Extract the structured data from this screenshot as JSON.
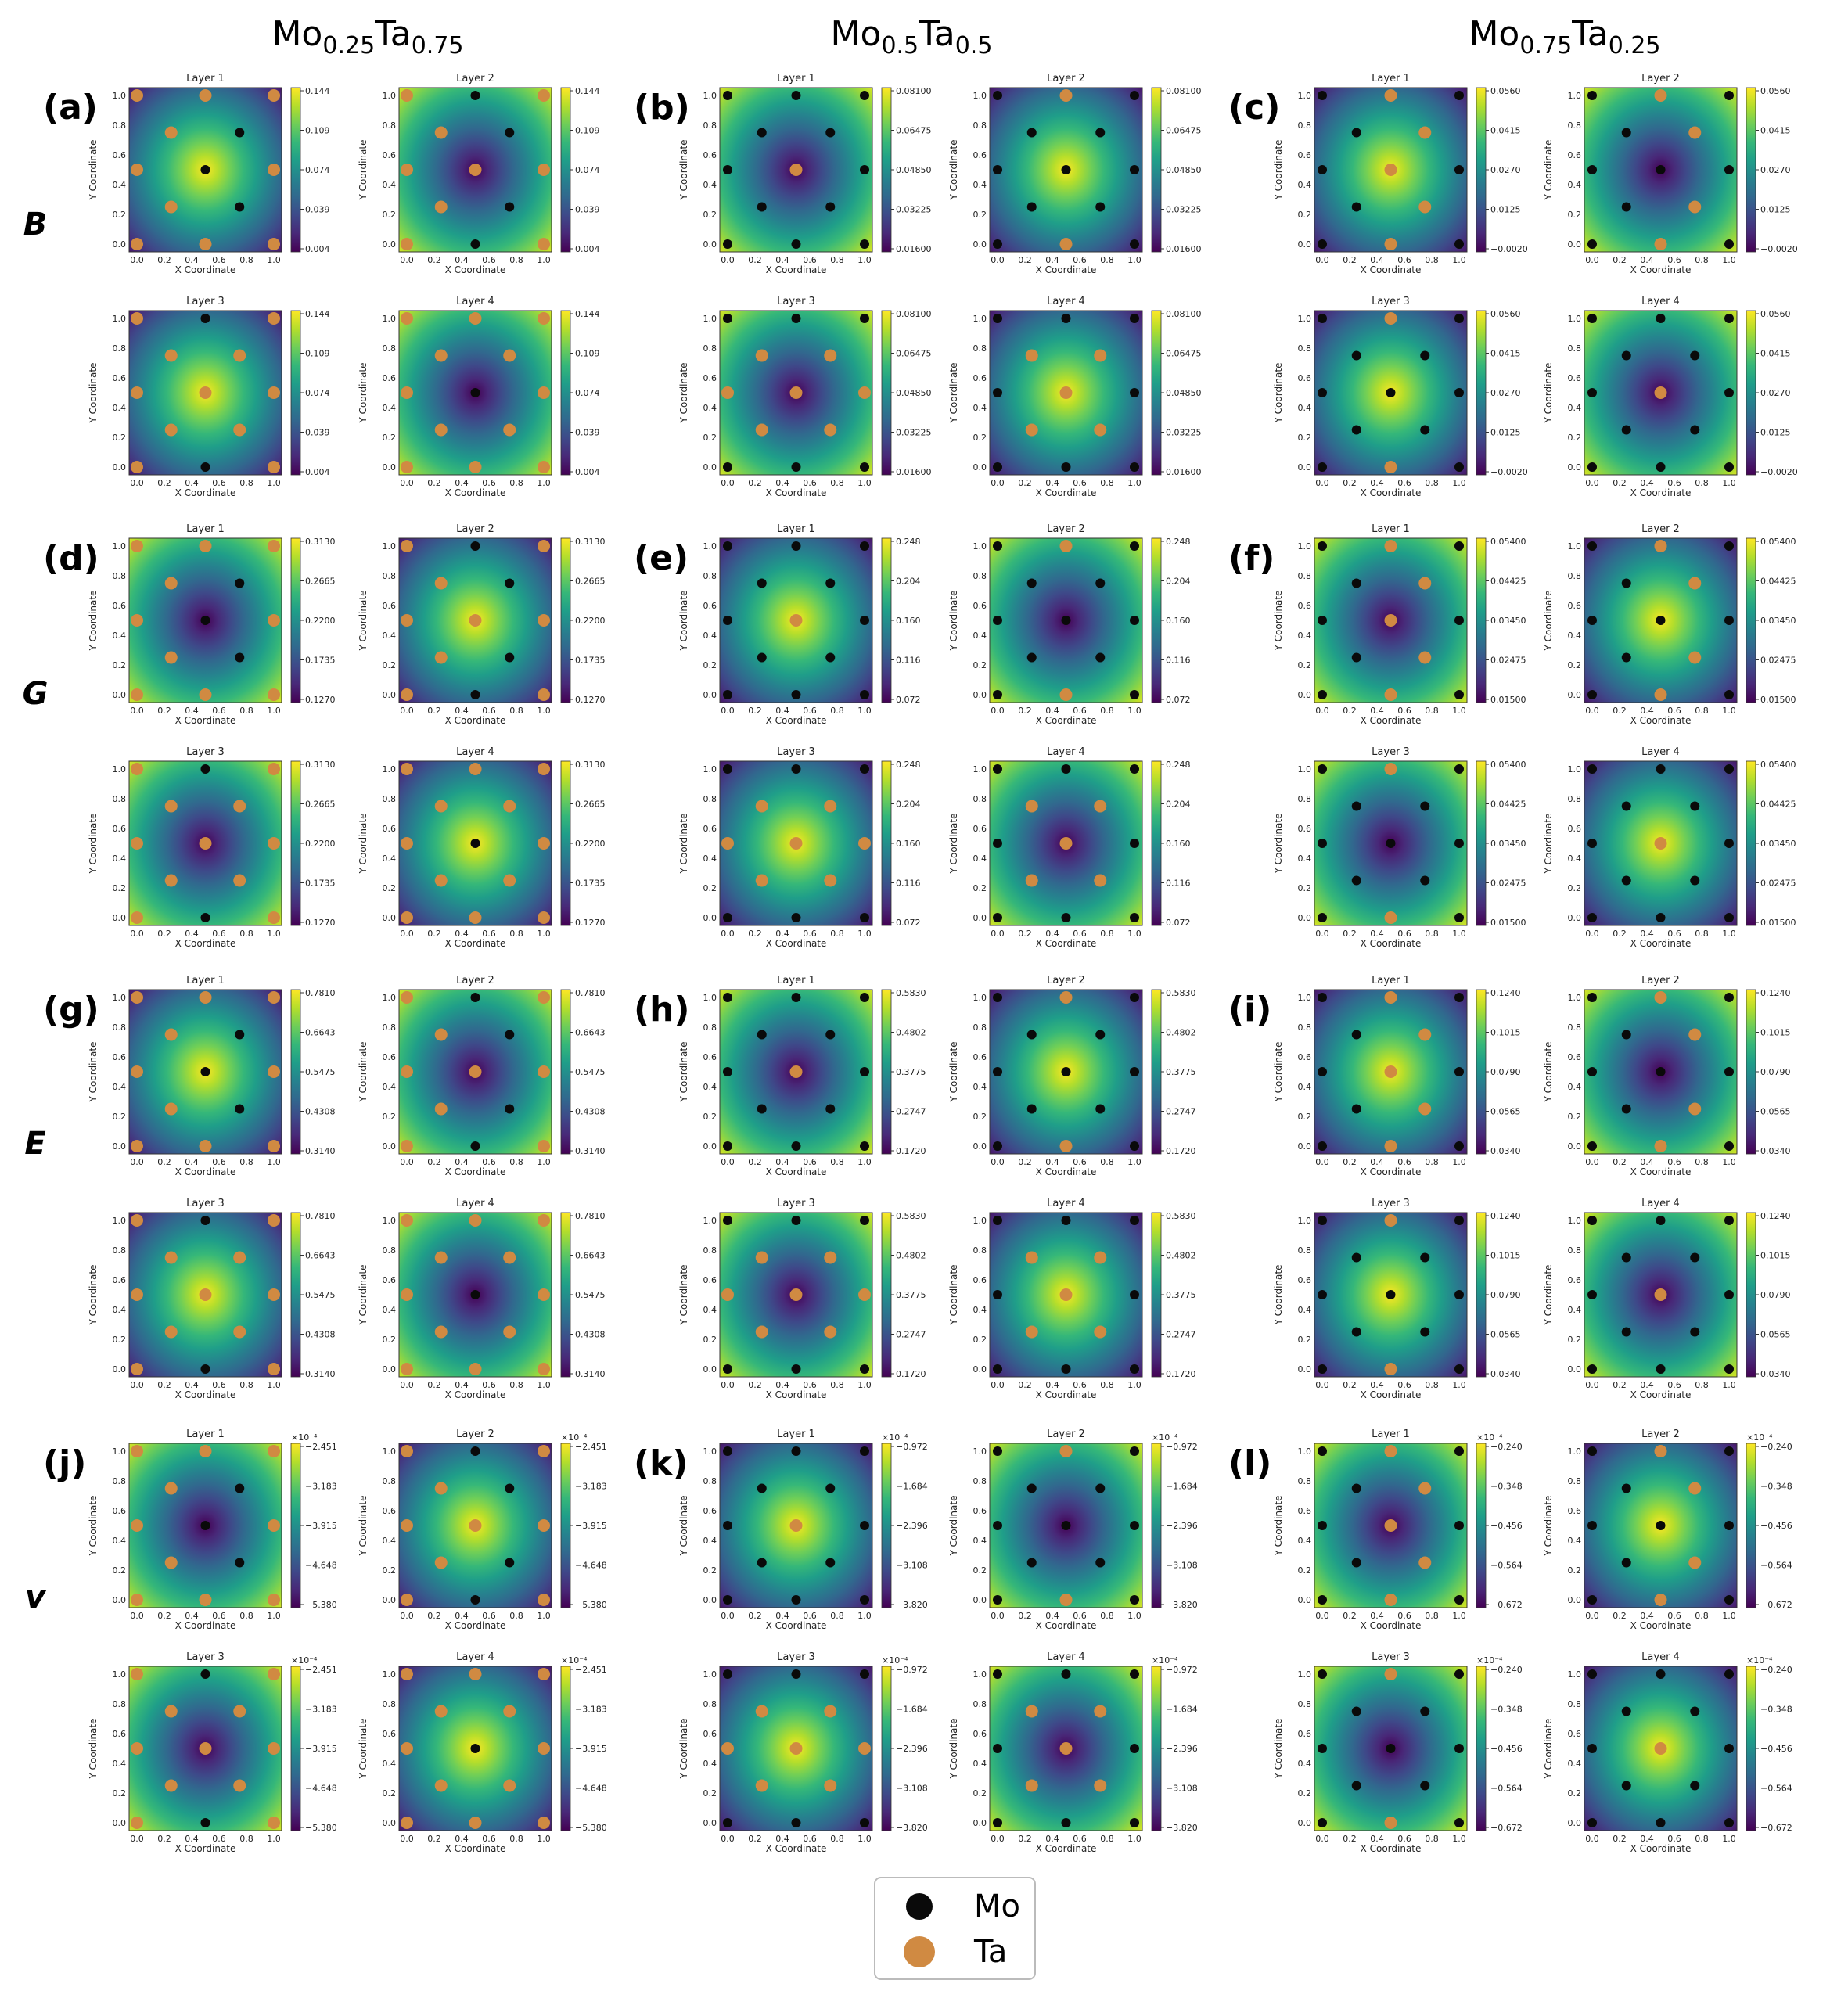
{
  "colors": {
    "mo": "#0a0a0a",
    "ta": "#d08a42",
    "viridis": [
      "#440154",
      "#482878",
      "#3e4989",
      "#31688e",
      "#26828e",
      "#1f9e89",
      "#35b779",
      "#6ece58",
      "#b5de2b",
      "#fde725"
    ]
  },
  "composition_headers": [
    {
      "base1": "Mo",
      "sub1": "0.25",
      "base2": "Ta",
      "sub2": "0.75"
    },
    {
      "base1": "Mo",
      "sub1": "0.5",
      "base2": "Ta",
      "sub2": "0.5"
    },
    {
      "base1": "Mo",
      "sub1": "0.75",
      "base2": "Ta",
      "sub2": "0.25"
    }
  ],
  "property_labels": [
    "B",
    "G",
    "E",
    "v"
  ],
  "panel_labels": [
    [
      "(a)",
      "(b)",
      "(c)"
    ],
    [
      "(d)",
      "(e)",
      "(f)"
    ],
    [
      "(g)",
      "(h)",
      "(i)"
    ],
    [
      "(j)",
      "(k)",
      "(l)"
    ]
  ],
  "axis_labels": {
    "x": "X Coordinate",
    "y": "Y Coordinate"
  },
  "axis_ticks": [
    "0.0",
    "0.2",
    "0.4",
    "0.6",
    "0.8",
    "1.0"
  ],
  "layer_titles": [
    "Layer 1",
    "Layer 2",
    "Layer 3",
    "Layer 4"
  ],
  "legend": {
    "mo": "Mo",
    "ta": "Ta"
  },
  "chart_data": {
    "type": "heatmap",
    "description_grid": "4 properties x 3 compositions, each with 4 layer contour maps",
    "colorbars": [
      [
        {
          "offset": "",
          "ticks": [
            "0.144",
            "0.109",
            "0.074",
            "0.039",
            "0.004"
          ]
        },
        {
          "offset": "",
          "ticks": [
            "0.08100",
            "0.06475",
            "0.04850",
            "0.03225",
            "0.01600"
          ]
        },
        {
          "offset": "",
          "ticks": [
            "0.0560",
            "0.0415",
            "0.0270",
            "0.0125",
            "−0.0020"
          ]
        }
      ],
      [
        {
          "offset": "",
          "ticks": [
            "0.3130",
            "0.2665",
            "0.2200",
            "0.1735",
            "0.1270"
          ]
        },
        {
          "offset": "",
          "ticks": [
            "0.248",
            "0.204",
            "0.160",
            "0.116",
            "0.072"
          ]
        },
        {
          "offset": "",
          "ticks": [
            "0.05400",
            "0.04425",
            "0.03450",
            "0.02475",
            "0.01500"
          ]
        }
      ],
      [
        {
          "offset": "",
          "ticks": [
            "0.7810",
            "0.6643",
            "0.5475",
            "0.4308",
            "0.3140"
          ]
        },
        {
          "offset": "",
          "ticks": [
            "0.5830",
            "0.4802",
            "0.3775",
            "0.2747",
            "0.1720"
          ]
        },
        {
          "offset": "",
          "ticks": [
            "0.1240",
            "0.1015",
            "0.0790",
            "0.0565",
            "0.0340"
          ]
        }
      ],
      [
        {
          "offset": "×10⁻⁴",
          "ticks": [
            "−2.451",
            "−3.183",
            "−3.915",
            "−4.648",
            "−5.380"
          ]
        },
        {
          "offset": "×10⁻⁴",
          "ticks": [
            "−0.972",
            "−1.684",
            "−2.396",
            "−3.108",
            "−3.820"
          ]
        },
        {
          "offset": "×10⁻⁴",
          "ticks": [
            "−0.240",
            "−0.348",
            "−0.456",
            "−0.564",
            "−0.672"
          ]
        }
      ]
    ],
    "atom_sites": {
      "corners": [
        [
          0,
          0
        ],
        [
          1,
          0
        ],
        [
          0,
          1
        ],
        [
          1,
          1
        ]
      ],
      "edges": [
        [
          0.5,
          0
        ],
        [
          0.5,
          1
        ],
        [
          0,
          0.5
        ],
        [
          1,
          0.5
        ]
      ],
      "center": [
        0.5,
        0.5
      ],
      "inner": [
        [
          0.25,
          0.25
        ],
        [
          0.75,
          0.25
        ],
        [
          0.25,
          0.75
        ],
        [
          0.75,
          0.75
        ]
      ]
    },
    "layer_occupancy": [
      [
        {
          "corners": "ta",
          "edges": "ta",
          "center": "mo",
          "inner": "ta",
          "inner_tr_br": "mo"
        },
        {
          "corners": "ta",
          "edges": "ta_mo_tb",
          "center": "ta",
          "inner": "ta",
          "inner_tr_br": "mo"
        },
        {
          "corners": "ta",
          "edges": "ta_mo_tb",
          "center": "ta",
          "inner": "ta",
          "inner_tr_br": "ta"
        },
        {
          "corners": "ta",
          "edges": "ta",
          "center": "mo",
          "inner": "ta",
          "inner_tr_br": "ta"
        }
      ],
      [
        {
          "corners": "mo",
          "edges": "mo",
          "center": "ta",
          "inner": "mo",
          "inner_tr_br": "mo"
        },
        {
          "corners": "mo",
          "edges": "ta_mo_lr",
          "center": "mo",
          "inner": "mo",
          "inner_tr_br": "mo"
        },
        {
          "corners": "mo",
          "edges": "ta_mo_tb",
          "center": "ta",
          "inner": "ta",
          "inner_tr_br": "ta"
        },
        {
          "corners": "mo",
          "edges": "mo",
          "center": "ta",
          "inner": "ta",
          "inner_tr_br": "ta"
        }
      ],
      [
        {
          "corners": "mo",
          "edges": "mo_ta_tb",
          "center": "ta",
          "inner": "mo",
          "inner_tr_br": "ta"
        },
        {
          "corners": "mo",
          "edges": "mo_ta_tb",
          "center": "mo",
          "inner": "mo",
          "inner_tr_br": "ta"
        },
        {
          "corners": "mo",
          "edges": "mo_ta_tb",
          "center": "mo",
          "inner": "mo",
          "inner_tr_br": "mo"
        },
        {
          "corners": "mo",
          "edges": "mo",
          "center": "ta",
          "inner": "mo",
          "inner_tr_br": "mo"
        }
      ]
    ]
  }
}
